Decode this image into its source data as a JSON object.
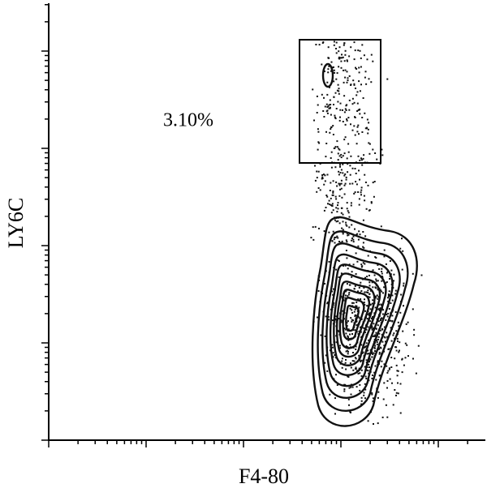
{
  "chart_data": {
    "type": "contour",
    "x_label": "F4-80",
    "y_label": "LY6C",
    "annotation": "3.10%"
  }
}
